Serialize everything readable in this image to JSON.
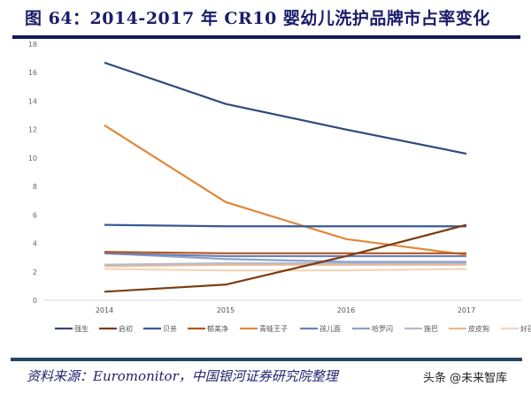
{
  "title": "图 64：2014-2017 年 CR10 婴幼儿洗护品牌市占率变化",
  "source": "资料来源：Euromonitor，中国银河证券研究院整理",
  "watermark": "头条 @未来智库",
  "chart_data": {
    "type": "line",
    "title": "",
    "xlabel": "",
    "ylabel": "",
    "categories": [
      "2014",
      "2015",
      "2016",
      "2017"
    ],
    "ylim": [
      0,
      18
    ],
    "yticks": [
      0,
      2,
      4,
      6,
      8,
      10,
      12,
      14,
      16,
      18
    ],
    "grid": false,
    "legend": "bottom",
    "series": [
      {
        "name": "强生",
        "color": "#2e4a7a",
        "values": [
          16.7,
          13.8,
          12.0,
          10.3
        ]
      },
      {
        "name": "启初",
        "color": "#7a3e12",
        "values": [
          0.6,
          1.1,
          3.1,
          5.3
        ]
      },
      {
        "name": "贝亲",
        "color": "#3a5a94",
        "values": [
          5.3,
          5.2,
          5.2,
          5.2
        ]
      },
      {
        "name": "郁美净",
        "color": "#b5561c",
        "values": [
          3.4,
          3.3,
          3.3,
          3.3
        ]
      },
      {
        "name": "青蛙王子",
        "color": "#e0883a",
        "values": [
          12.3,
          6.9,
          4.3,
          3.2
        ]
      },
      {
        "name": "孩儿面",
        "color": "#6a80b8",
        "values": [
          3.3,
          3.1,
          3.1,
          3.1
        ]
      },
      {
        "name": "哈罗闪",
        "color": "#8fa0c8",
        "values": [
          3.3,
          2.9,
          2.7,
          2.7
        ]
      },
      {
        "name": "施巴",
        "color": "#b4bccc",
        "values": [
          2.5,
          2.6,
          2.6,
          2.6
        ]
      },
      {
        "name": "皮皮狗",
        "color": "#f0b890",
        "values": [
          2.4,
          2.5,
          2.5,
          2.5
        ]
      },
      {
        "name": "好孩子",
        "color": "#f6d4b8",
        "values": [
          2.2,
          2.1,
          2.1,
          2.2
        ]
      }
    ]
  }
}
